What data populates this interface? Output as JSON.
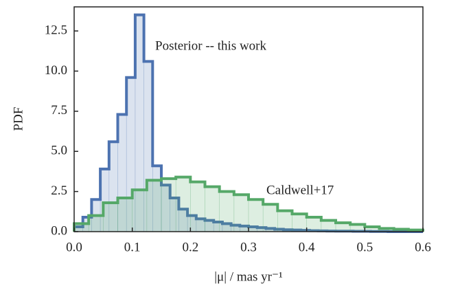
{
  "chart_data": {
    "type": "histogram",
    "xlabel": "|μ| / mas yr⁻¹",
    "ylabel": "PDF",
    "annotations": [
      "Posterior -- this work",
      "Caldwell+17"
    ],
    "xlim": [
      0,
      0.6
    ],
    "ylim": [
      0,
      14
    ],
    "xticks": [
      {
        "value": 0,
        "label": "0.0"
      },
      0.1,
      0.2,
      0.3,
      0.4,
      0.5,
      0.6
    ],
    "yticks": [
      {
        "value": 0,
        "label": "0.0"
      },
      2.5,
      {
        "value": 5,
        "label": "5.0"
      },
      7.5,
      {
        "value": 10,
        "label": "10.0"
      },
      12.5
    ],
    "series": [
      {
        "color": "#4c72b0",
        "bins": [
          0,
          0.015,
          0.03,
          0.045,
          0.06,
          0.075,
          0.09,
          0.105,
          0.12,
          0.135,
          0.15,
          0.165,
          0.18,
          0.195,
          0.21,
          0.225,
          0.24,
          0.255,
          0.27,
          0.285,
          0.3,
          0.315,
          0.33,
          0.345,
          0.36,
          0.375,
          0.39,
          0.405,
          0.42,
          0.435,
          0.45,
          0.465,
          0.48,
          0.495,
          0.51,
          0.525,
          0.54,
          0.555,
          0.57,
          0.585,
          0.6
        ],
        "values": [
          0.3,
          0.9,
          2.0,
          3.9,
          5.6,
          7.3,
          9.6,
          13.5,
          10.6,
          4.1,
          2.9,
          2.1,
          1.4,
          1.0,
          0.8,
          0.7,
          0.6,
          0.5,
          0.4,
          0.35,
          0.3,
          0.25,
          0.2,
          0.15,
          0.12,
          0.1,
          0.08,
          0.06,
          0.05,
          0.04,
          0.03,
          0.03,
          0.02,
          0.02,
          0.01,
          0.01,
          0,
          0,
          0,
          0
        ]
      },
      {
        "color": "#55a868",
        "bins": [
          0,
          0.025,
          0.05,
          0.075,
          0.1,
          0.125,
          0.15,
          0.175,
          0.2,
          0.225,
          0.25,
          0.275,
          0.3,
          0.325,
          0.35,
          0.375,
          0.4,
          0.425,
          0.45,
          0.475,
          0.5,
          0.525,
          0.55,
          0.575,
          0.6
        ],
        "values": [
          0.5,
          1.0,
          1.8,
          2.1,
          2.6,
          3.2,
          3.3,
          3.4,
          3.1,
          2.8,
          2.5,
          2.3,
          2.0,
          1.7,
          1.3,
          1.1,
          0.9,
          0.7,
          0.55,
          0.45,
          0.3,
          0.2,
          0.15,
          0.1
        ]
      }
    ]
  }
}
